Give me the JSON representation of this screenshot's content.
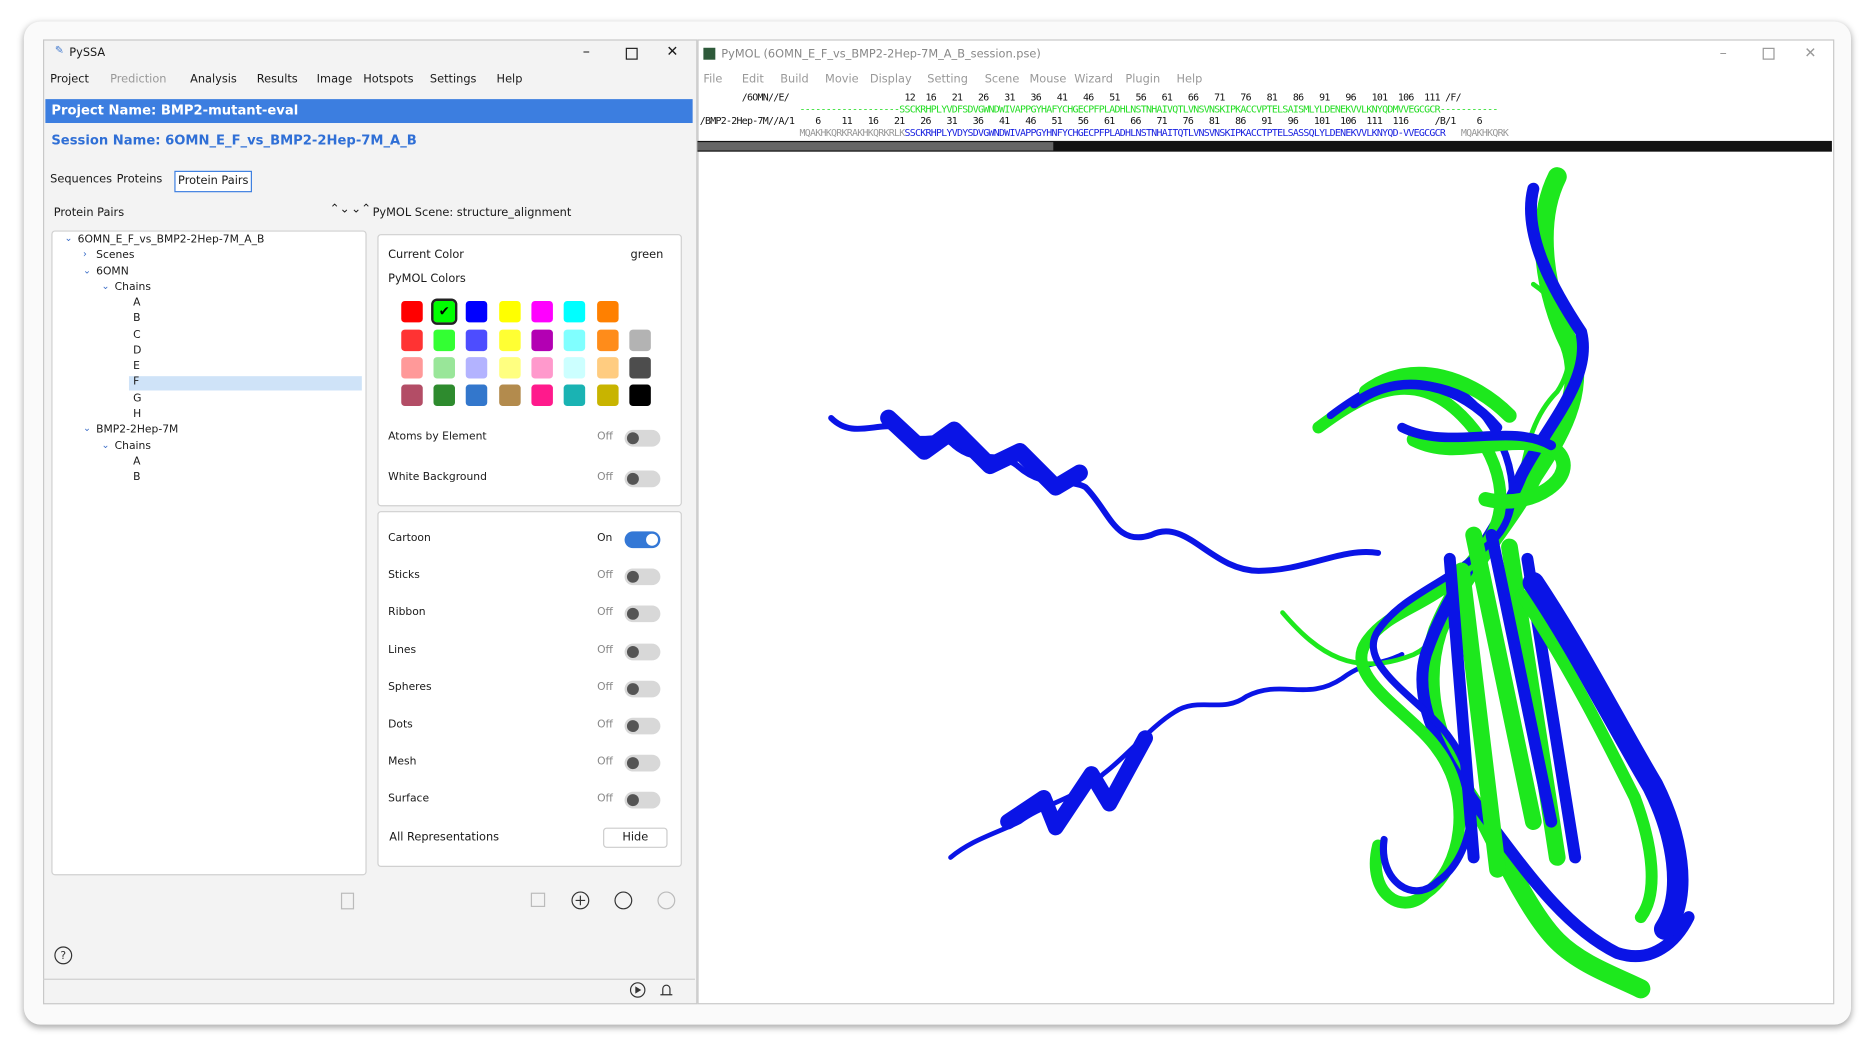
{
  "pyssa": {
    "title": "PySSA",
    "menu": [
      "Project",
      "Prediction",
      "Analysis",
      "Results",
      "Image",
      "Hotspots",
      "Settings",
      "Help"
    ],
    "project_name": "Project Name: BMP2-mutant-eval",
    "session_name": "Session Name: 6OMN_E_F_vs_BMP2-2Hep-7M_A_B",
    "tabs": [
      "Sequences",
      "Proteins",
      "Protein Pairs"
    ],
    "tree_header": "Protein Pairs",
    "tree": [
      {
        "label": "6OMN_E_F_vs_BMP2-2Hep-7M_A_B",
        "children": [
          {
            "label": "Scenes"
          },
          {
            "label": "6OMN",
            "children": [
              {
                "label": "Chains",
                "children": [
                  {
                    "label": "A"
                  },
                  {
                    "label": "B"
                  },
                  {
                    "label": "C"
                  },
                  {
                    "label": "D"
                  },
                  {
                    "label": "E"
                  },
                  {
                    "label": "F"
                  },
                  {
                    "label": "G"
                  },
                  {
                    "label": "H"
                  }
                ]
              }
            ]
          },
          {
            "label": "BMP2-2Hep-7M",
            "children": [
              {
                "label": "Chains",
                "children": [
                  {
                    "label": "A"
                  },
                  {
                    "label": "B"
                  }
                ]
              }
            ]
          }
        ]
      }
    ],
    "scene_label": "PyMOL Scene: structure_alignment",
    "current_color_label": "Current Color",
    "current_color": "green",
    "colors_label": "PyMOL Colors",
    "settings": [
      {
        "label": "Atoms by Element",
        "state": "Off"
      },
      {
        "label": "White Background",
        "state": "Off"
      }
    ],
    "representations": [
      {
        "label": "Cartoon",
        "state": "On"
      },
      {
        "label": "Sticks",
        "state": "Off"
      },
      {
        "label": "Ribbon",
        "state": "Off"
      },
      {
        "label": "Lines",
        "state": "Off"
      },
      {
        "label": "Spheres",
        "state": "Off"
      },
      {
        "label": "Dots",
        "state": "Off"
      },
      {
        "label": "Mesh",
        "state": "Off"
      },
      {
        "label": "Surface",
        "state": "Off"
      }
    ],
    "all_representations_label": "All Representations",
    "hide_button": "Hide"
  },
  "pymol": {
    "title": "PyMOL (6OMN_E_F_vs_BMP2-2Hep-7M_A_B_session.pse)",
    "menu": [
      "File",
      "Edit",
      "Build",
      "Movie",
      "Display",
      "Setting",
      "Scene",
      "Mouse",
      "Wizard",
      "Plugin",
      "Help"
    ],
    "sequence_rows": [
      [
        {
          "text": "        /6OMN//E/                      12  16   21   26   31   36   41   46   51   56   61   66   71   76   81   86   91   96   101  106  111 /F/"
        }
      ],
      [
        {
          "text": "                   -------------------",
          "tone": "green"
        },
        {
          "text": "SSCKRHPLYVDFSDVGWNDWIVAPPGYHAFYCHGECPFPLADHLNSTNHAIVQTLVNSVNSKIPKACCVPTELSAISMLYLDENEKVVLKNYQDMVVEGCGCR",
          "tone": "green"
        },
        {
          "text": "-----------",
          "tone": "green"
        }
      ],
      [
        {
          "text": "/BMP2-2Hep-7M//A/1    6    11   16   21   26   31   36   41   46   51   56   61   66   71   76   81   86   91   96   101  106  111  116     /B/1    6"
        }
      ],
      [
        {
          "text": "                   MQAKHKQRKRAKHKQRKRLK",
          "tone": "gray"
        },
        {
          "text": "SSCKRHPLYVDYSDVGWNDWIVAPPGYHNFYCHGECPFPLADHLNSTNHAITQTLVNSVNSKIPKACCTPTELSASSQLYLDENEKVVLKNYQD-VVEGCGCR",
          "tone": "blue"
        },
        {
          "text": "   MQAKHKQRK",
          "tone": "gray"
        }
      ]
    ]
  }
}
